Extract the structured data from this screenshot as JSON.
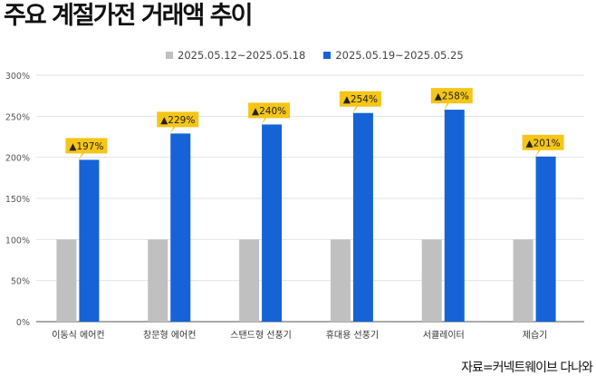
{
  "title": "주요 계절가전 거래액 추이",
  "source": "자료=커넥트웨이브 다나와",
  "colors": {
    "prev": "#c0c0c0",
    "curr": "#1563d6",
    "callout": "#f5c518",
    "grid": "#e2e2e2",
    "axis": "#555555"
  },
  "chart_data": {
    "type": "bar",
    "categories": [
      "이동식 에어컨",
      "창문형 에어컨",
      "스탠드형 선풍기",
      "휴대용 선풍기",
      "서큘레이터",
      "제습기"
    ],
    "series": [
      {
        "name": "2025.05.12~2025.05.18",
        "values": [
          100,
          100,
          100,
          100,
          100,
          100
        ]
      },
      {
        "name": "2025.05.19~2025.05.25",
        "values": [
          197,
          229,
          240,
          254,
          258,
          201
        ]
      }
    ],
    "data_labels": [
      "▲197%",
      "▲229%",
      "▲240%",
      "▲254%",
      "▲258%",
      "▲201%"
    ],
    "yticks": [
      "0%",
      "50%",
      "100%",
      "150%",
      "200%",
      "250%",
      "300%"
    ],
    "ylim": [
      0,
      300
    ],
    "grid": true,
    "legend_position": "top"
  }
}
